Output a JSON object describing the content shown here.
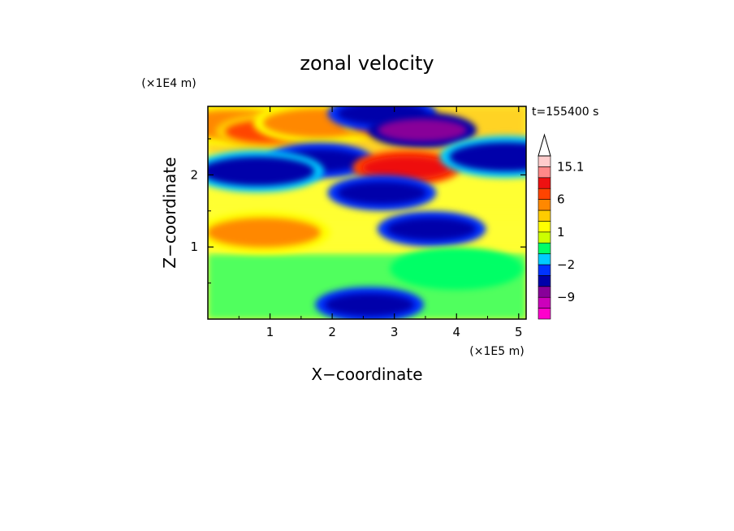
{
  "chart_data": {
    "type": "heatmap",
    "title": "zonal velocity",
    "xlabel": "X−coordinate",
    "ylabel": "Z−coordinate",
    "x_scale_label": "(×1E5 m)",
    "y_scale_label": "(×1E4 m)",
    "time_label": "t=155400 s",
    "xlim": [
      0,
      5.12
    ],
    "ylim": [
      0,
      2.95
    ],
    "x_ticks": [
      "1",
      "2",
      "3",
      "4",
      "5"
    ],
    "y_ticks": [
      "1",
      "2"
    ],
    "colorbar": {
      "levels": [
        -15,
        -12,
        -9,
        -6,
        -4,
        -2,
        -1,
        0,
        1,
        2,
        4,
        6,
        9,
        12,
        15.1
      ],
      "colors": [
        "#ff00cc",
        "#cc00bb",
        "#880099",
        "#0000aa",
        "#0033ff",
        "#00ccff",
        "#00ff66",
        "#ccff00",
        "#ffff00",
        "#ffcc00",
        "#ff8800",
        "#ff4400",
        "#ee1111",
        "#ff8888",
        "#ffcccc"
      ],
      "labels": [
        "15.1",
        "6",
        "1",
        "−2",
        "−9"
      ]
    },
    "features": [
      {
        "x": 0.4,
        "z": 2.7,
        "u": 4
      },
      {
        "x": 1.0,
        "z": 2.6,
        "u": 6
      },
      {
        "x": 1.8,
        "z": 2.72,
        "u": 4
      },
      {
        "x": 3.05,
        "z": 2.7,
        "u": 6
      },
      {
        "x": 2.8,
        "z": 2.85,
        "u": -6
      },
      {
        "x": 3.45,
        "z": 2.62,
        "u": -8
      },
      {
        "x": 1.8,
        "z": 2.2,
        "u": -6
      },
      {
        "x": 0.8,
        "z": 2.05,
        "u": -5
      },
      {
        "x": 3.2,
        "z": 2.1,
        "u": 9
      },
      {
        "x": 2.8,
        "z": 1.75,
        "u": -6
      },
      {
        "x": 3.6,
        "z": 1.25,
        "u": -6
      },
      {
        "x": 4.8,
        "z": 2.25,
        "u": -5
      },
      {
        "x": 0.9,
        "z": 1.2,
        "u": 4
      },
      {
        "x": 2.6,
        "z": 0.2,
        "u": -6
      },
      {
        "x": 4.0,
        "z": 0.7,
        "u": -1
      }
    ]
  }
}
